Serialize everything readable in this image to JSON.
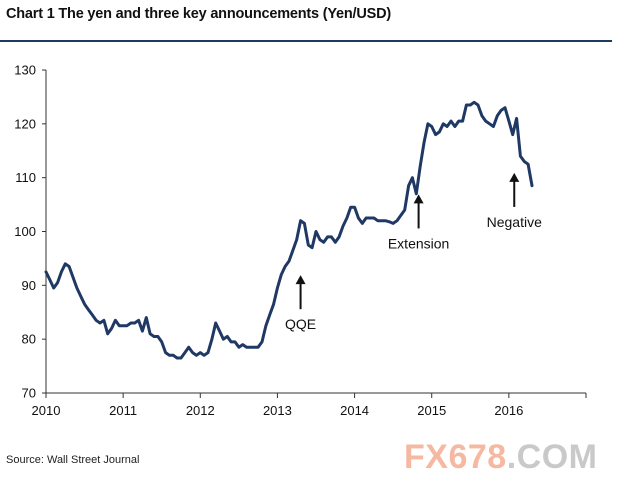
{
  "title": "Chart 1 The yen and three key announcements (Yen/USD)",
  "source": "Source: Wall Street Journal",
  "watermark": {
    "part1": "FX678",
    "part2": ".COM"
  },
  "colors": {
    "line": "#1f3864",
    "axis": "#333333",
    "title_rule": "#1f3864"
  },
  "chart_data": {
    "type": "line",
    "title": "Chart 1 The yen and three key announcements (Yen/USD)",
    "xlabel": "",
    "ylabel": "",
    "xlim": [
      2010.0,
      2017.0
    ],
    "ylim": [
      70,
      130
    ],
    "x_ticks": [
      "2010",
      "2011",
      "2012",
      "2013",
      "2014",
      "2015",
      "2016"
    ],
    "y_ticks": [
      "70",
      "80",
      "90",
      "100",
      "110",
      "120",
      "130"
    ],
    "grid": false,
    "legend": "none",
    "series": [
      {
        "x": [
          2010.0,
          2010.05,
          2010.1,
          2010.15,
          2010.2,
          2010.25,
          2010.3,
          2010.35,
          2010.4,
          2010.45,
          2010.5,
          2010.55,
          2010.6,
          2010.65,
          2010.7,
          2010.75,
          2010.8,
          2010.85,
          2010.9,
          2010.95,
          2011.0,
          2011.05,
          2011.1,
          2011.15,
          2011.2,
          2011.25,
          2011.3,
          2011.35,
          2011.4,
          2011.45,
          2011.5,
          2011.55,
          2011.6,
          2011.65,
          2011.7,
          2011.75,
          2011.8,
          2011.85,
          2011.9,
          2011.95,
          2012.0,
          2012.05,
          2012.1,
          2012.15,
          2012.2,
          2012.25,
          2012.3,
          2012.35,
          2012.4,
          2012.45,
          2012.5,
          2012.55,
          2012.6,
          2012.65,
          2012.7,
          2012.75,
          2012.8,
          2012.85,
          2012.9,
          2012.95,
          2013.0,
          2013.05,
          2013.1,
          2013.15,
          2013.2,
          2013.25,
          2013.3,
          2013.35,
          2013.4,
          2013.45,
          2013.5,
          2013.55,
          2013.6,
          2013.65,
          2013.7,
          2013.75,
          2013.8,
          2013.85,
          2013.9,
          2013.95,
          2014.0,
          2014.05,
          2014.1,
          2014.15,
          2014.2,
          2014.25,
          2014.3,
          2014.35,
          2014.4,
          2014.45,
          2014.5,
          2014.55,
          2014.6,
          2014.65,
          2014.7,
          2014.75,
          2014.8,
          2014.85,
          2014.9,
          2014.95,
          2015.0,
          2015.05,
          2015.1,
          2015.15,
          2015.2,
          2015.25,
          2015.3,
          2015.35,
          2015.4,
          2015.45,
          2015.5,
          2015.55,
          2015.6,
          2015.65,
          2015.7,
          2015.75,
          2015.8,
          2015.85,
          2015.9,
          2015.95,
          2016.0,
          2016.05,
          2016.1,
          2016.15,
          2016.2,
          2016.25,
          2016.3
        ],
        "y": [
          92.5,
          91.0,
          89.5,
          90.5,
          92.5,
          94.0,
          93.5,
          91.5,
          89.5,
          88.0,
          86.5,
          85.5,
          84.5,
          83.5,
          83.0,
          83.5,
          81.0,
          82.0,
          83.5,
          82.5,
          82.5,
          82.5,
          83.0,
          83.0,
          83.5,
          81.5,
          84.0,
          81.0,
          80.5,
          80.5,
          79.5,
          77.5,
          77.0,
          77.0,
          76.5,
          76.5,
          77.5,
          78.5,
          77.5,
          77.0,
          77.5,
          77.0,
          77.5,
          80.0,
          83.0,
          81.5,
          80.0,
          80.5,
          79.5,
          79.5,
          78.5,
          79.0,
          78.5,
          78.5,
          78.5,
          78.5,
          79.5,
          82.5,
          84.5,
          86.5,
          89.5,
          92.0,
          93.5,
          94.5,
          96.5,
          98.5,
          102.0,
          101.5,
          97.5,
          97.0,
          100.0,
          98.5,
          98.0,
          99.0,
          99.0,
          98.0,
          99.0,
          101.0,
          102.5,
          104.5,
          104.5,
          102.5,
          101.5,
          102.5,
          102.5,
          102.5,
          102.0,
          102.0,
          102.0,
          101.8,
          101.5,
          102.0,
          103.0,
          104.0,
          108.5,
          110.0,
          107.0,
          112.0,
          116.5,
          120.0,
          119.5,
          118.0,
          118.5,
          120.0,
          119.5,
          120.5,
          119.5,
          120.5,
          120.5,
          123.5,
          123.5,
          124.0,
          123.5,
          121.5,
          120.5,
          120.0,
          119.5,
          121.5,
          122.5,
          123.0,
          120.5,
          118.0,
          121.0,
          114.0,
          113.0,
          112.5,
          108.5
        ]
      }
    ],
    "annotations": [
      {
        "text": "QQE",
        "x": 2013.3,
        "y": 93
      },
      {
        "text": "Extension",
        "x": 2014.83,
        "y": 108
      },
      {
        "text": "Negative",
        "x": 2016.07,
        "y": 112
      }
    ]
  }
}
